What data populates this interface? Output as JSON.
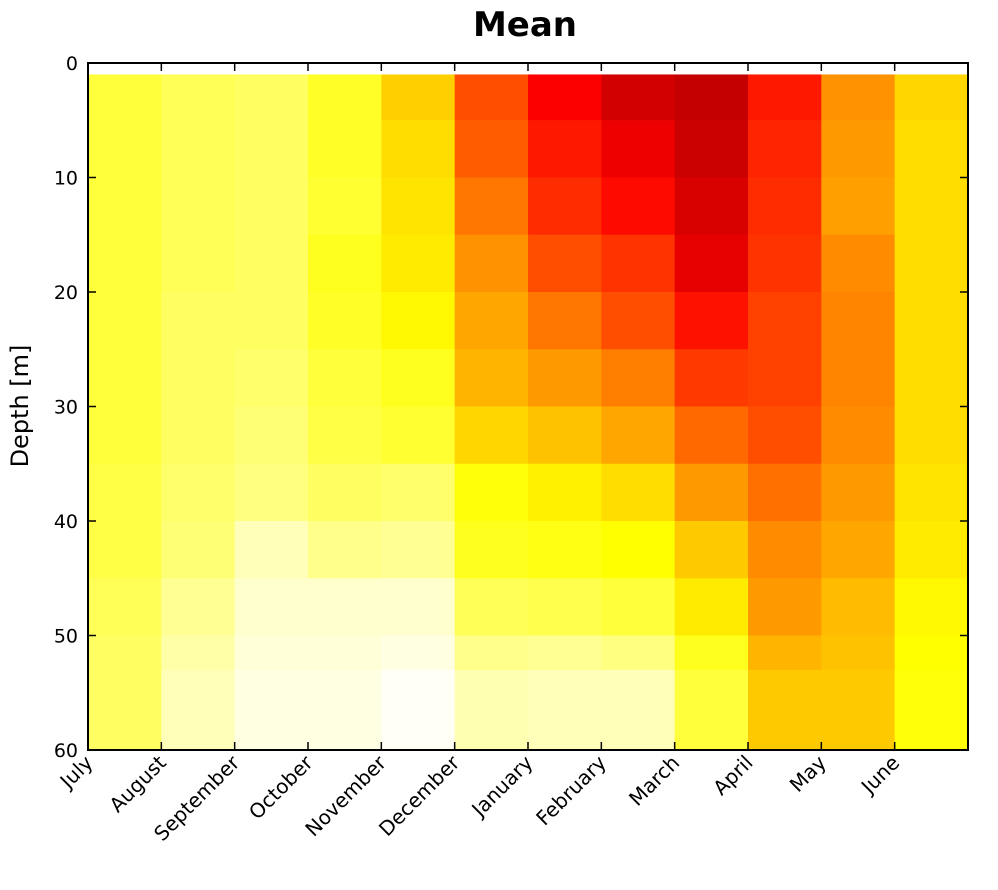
{
  "chart_data": {
    "type": "heatmap",
    "title": "Mean",
    "xlabel": "",
    "ylabel": "Depth [m]",
    "ylim": [
      0,
      60
    ],
    "y_inverted": true,
    "y_ticks": [
      0,
      10,
      20,
      30,
      40,
      50,
      60
    ],
    "x_categories": [
      "July",
      "August",
      "September",
      "October",
      "November",
      "December",
      "January",
      "February",
      "March",
      "April",
      "May",
      "June"
    ],
    "depth_bins": [
      [
        1,
        5
      ],
      [
        5,
        10
      ],
      [
        10,
        15
      ],
      [
        15,
        20
      ],
      [
        20,
        25
      ],
      [
        25,
        30
      ],
      [
        30,
        35
      ],
      [
        35,
        40
      ],
      [
        40,
        45
      ],
      [
        45,
        50
      ],
      [
        50,
        53
      ],
      [
        53,
        60
      ]
    ],
    "colormap": "hot",
    "grid": false,
    "legend": "none",
    "values": [
      [
        0.8,
        0.83,
        0.84,
        0.78,
        0.67,
        0.48,
        0.36,
        0.3,
        0.28,
        0.4,
        0.58,
        0.68
      ],
      [
        0.8,
        0.83,
        0.84,
        0.78,
        0.69,
        0.5,
        0.4,
        0.34,
        0.29,
        0.42,
        0.59,
        0.69
      ],
      [
        0.8,
        0.83,
        0.84,
        0.79,
        0.7,
        0.54,
        0.43,
        0.38,
        0.31,
        0.43,
        0.6,
        0.69
      ],
      [
        0.8,
        0.83,
        0.84,
        0.77,
        0.71,
        0.58,
        0.48,
        0.44,
        0.33,
        0.44,
        0.57,
        0.69
      ],
      [
        0.8,
        0.84,
        0.84,
        0.78,
        0.73,
        0.61,
        0.54,
        0.48,
        0.39,
        0.46,
        0.56,
        0.69
      ],
      [
        0.8,
        0.84,
        0.85,
        0.8,
        0.77,
        0.63,
        0.59,
        0.55,
        0.45,
        0.46,
        0.56,
        0.69
      ],
      [
        0.8,
        0.84,
        0.86,
        0.81,
        0.79,
        0.68,
        0.65,
        0.61,
        0.52,
        0.48,
        0.57,
        0.69
      ],
      [
        0.81,
        0.85,
        0.87,
        0.84,
        0.85,
        0.75,
        0.72,
        0.69,
        0.59,
        0.53,
        0.59,
        0.7
      ],
      [
        0.81,
        0.86,
        0.93,
        0.88,
        0.89,
        0.77,
        0.76,
        0.74,
        0.66,
        0.57,
        0.61,
        0.71
      ],
      [
        0.83,
        0.89,
        0.95,
        0.95,
        0.95,
        0.83,
        0.82,
        0.8,
        0.71,
        0.59,
        0.64,
        0.73
      ],
      [
        0.84,
        0.91,
        0.96,
        0.96,
        0.97,
        0.88,
        0.89,
        0.87,
        0.77,
        0.63,
        0.65,
        0.74
      ],
      [
        0.84,
        0.93,
        0.97,
        0.97,
        0.99,
        0.92,
        0.93,
        0.93,
        0.8,
        0.66,
        0.66,
        0.75
      ]
    ]
  }
}
